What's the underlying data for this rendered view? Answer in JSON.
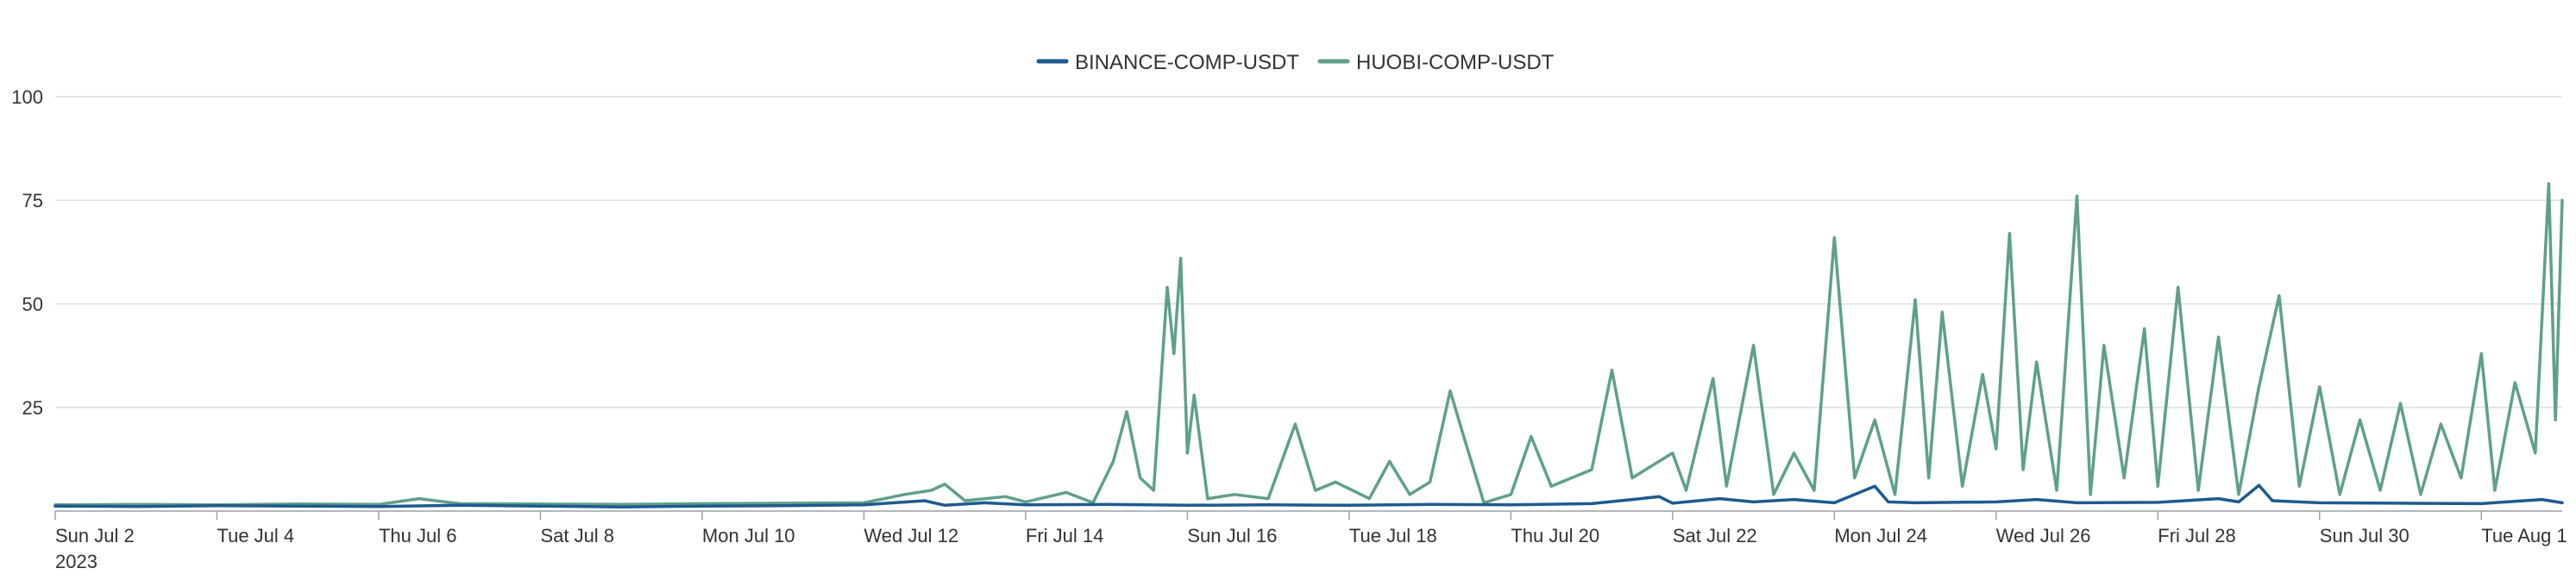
{
  "chart_data": {
    "type": "line",
    "title": "",
    "xlabel": "",
    "ylabel": "",
    "x_range": [
      "2023-07-02",
      "2023-08-02"
    ],
    "ylim": [
      0,
      100
    ],
    "yticks": [
      25,
      50,
      75,
      100
    ],
    "xticks": [
      {
        "date": "2023-07-02",
        "label": "Sun Jul 2",
        "sublabel": "2023"
      },
      {
        "date": "2023-07-04",
        "label": "Tue Jul 4"
      },
      {
        "date": "2023-07-06",
        "label": "Thu Jul 6"
      },
      {
        "date": "2023-07-08",
        "label": "Sat Jul 8"
      },
      {
        "date": "2023-07-10",
        "label": "Mon Jul 10"
      },
      {
        "date": "2023-07-12",
        "label": "Wed Jul 12"
      },
      {
        "date": "2023-07-14",
        "label": "Fri Jul 14"
      },
      {
        "date": "2023-07-16",
        "label": "Sun Jul 16"
      },
      {
        "date": "2023-07-18",
        "label": "Tue Jul 18"
      },
      {
        "date": "2023-07-20",
        "label": "Thu Jul 20"
      },
      {
        "date": "2023-07-22",
        "label": "Sat Jul 22"
      },
      {
        "date": "2023-07-24",
        "label": "Mon Jul 24"
      },
      {
        "date": "2023-07-26",
        "label": "Wed Jul 26"
      },
      {
        "date": "2023-07-28",
        "label": "Fri Jul 28"
      },
      {
        "date": "2023-07-30",
        "label": "Sun Jul 30"
      },
      {
        "date": "2023-08-01",
        "label": "Tue Aug 1"
      }
    ],
    "grid": true,
    "legend_position": "top-center",
    "series": [
      {
        "name": "BINANCE-COMP-USDT",
        "color": "#1f5a8f",
        "points": [
          [
            "2023-07-02T00:00",
            1.2
          ],
          [
            "2023-07-03T00:00",
            1.1
          ],
          [
            "2023-07-04T00:00",
            1.3
          ],
          [
            "2023-07-05T00:00",
            1.2
          ],
          [
            "2023-07-06T00:00",
            1.1
          ],
          [
            "2023-07-07T00:00",
            1.4
          ],
          [
            "2023-07-08T00:00",
            1.2
          ],
          [
            "2023-07-09T00:00",
            1.0
          ],
          [
            "2023-07-10T00:00",
            1.2
          ],
          [
            "2023-07-11T00:00",
            1.3
          ],
          [
            "2023-07-12T00:00",
            1.5
          ],
          [
            "2023-07-12T18:00",
            2.5
          ],
          [
            "2023-07-13T00:00",
            1.4
          ],
          [
            "2023-07-13T12:00",
            2.0
          ],
          [
            "2023-07-14T00:00",
            1.5
          ],
          [
            "2023-07-15T00:00",
            1.6
          ],
          [
            "2023-07-16T00:00",
            1.4
          ],
          [
            "2023-07-17T00:00",
            1.5
          ],
          [
            "2023-07-18T00:00",
            1.4
          ],
          [
            "2023-07-19T00:00",
            1.6
          ],
          [
            "2023-07-20T00:00",
            1.5
          ],
          [
            "2023-07-21T00:00",
            1.8
          ],
          [
            "2023-07-21T12:00",
            2.8
          ],
          [
            "2023-07-21T20:00",
            3.5
          ],
          [
            "2023-07-22T00:00",
            1.9
          ],
          [
            "2023-07-22T14:00",
            3.0
          ],
          [
            "2023-07-23T00:00",
            2.2
          ],
          [
            "2023-07-23T12:00",
            2.8
          ],
          [
            "2023-07-24T00:00",
            2.0
          ],
          [
            "2023-07-24T12:00",
            6.0
          ],
          [
            "2023-07-24T16:00",
            2.2
          ],
          [
            "2023-07-25T00:00",
            2.0
          ],
          [
            "2023-07-26T00:00",
            2.2
          ],
          [
            "2023-07-26T12:00",
            2.8
          ],
          [
            "2023-07-27T00:00",
            2.0
          ],
          [
            "2023-07-28T00:00",
            2.1
          ],
          [
            "2023-07-28T18:00",
            3.0
          ],
          [
            "2023-07-29T00:00",
            2.2
          ],
          [
            "2023-07-29T06:00",
            6.2
          ],
          [
            "2023-07-29T10:00",
            2.5
          ],
          [
            "2023-07-30T00:00",
            2.0
          ],
          [
            "2023-07-31T00:00",
            1.9
          ],
          [
            "2023-08-01T00:00",
            1.8
          ],
          [
            "2023-08-01T18:00",
            2.8
          ],
          [
            "2023-08-02T00:00",
            2.0
          ]
        ]
      },
      {
        "name": "HUOBI-COMP-USDT",
        "color": "#5fa08a",
        "points": [
          [
            "2023-07-02T00:00",
            1.5
          ],
          [
            "2023-07-03T00:00",
            1.6
          ],
          [
            "2023-07-04T00:00",
            1.5
          ],
          [
            "2023-07-05T00:00",
            1.7
          ],
          [
            "2023-07-06T00:00",
            1.6
          ],
          [
            "2023-07-06T12:00",
            3.0
          ],
          [
            "2023-07-07T00:00",
            1.8
          ],
          [
            "2023-07-08T00:00",
            1.7
          ],
          [
            "2023-07-09T00:00",
            1.6
          ],
          [
            "2023-07-10T00:00",
            1.8
          ],
          [
            "2023-07-11T00:00",
            1.9
          ],
          [
            "2023-07-12T00:00",
            2.0
          ],
          [
            "2023-07-12T12:00",
            4.0
          ],
          [
            "2023-07-12T20:00",
            5.0
          ],
          [
            "2023-07-13T00:00",
            6.5
          ],
          [
            "2023-07-13T06:00",
            2.5
          ],
          [
            "2023-07-13T18:00",
            3.5
          ],
          [
            "2023-07-14T00:00",
            2.2
          ],
          [
            "2023-07-14T12:00",
            4.5
          ],
          [
            "2023-07-14T20:00",
            2.0
          ],
          [
            "2023-07-15T02:00",
            12.0
          ],
          [
            "2023-07-15T06:00",
            24.0
          ],
          [
            "2023-07-15T10:00",
            8.0
          ],
          [
            "2023-07-15T14:00",
            5.0
          ],
          [
            "2023-07-15T18:00",
            54.0
          ],
          [
            "2023-07-15T20:00",
            38.0
          ],
          [
            "2023-07-15T22:00",
            61.0
          ],
          [
            "2023-07-16T00:00",
            14.0
          ],
          [
            "2023-07-16T02:00",
            28.0
          ],
          [
            "2023-07-16T06:00",
            3.0
          ],
          [
            "2023-07-16T14:00",
            4.0
          ],
          [
            "2023-07-17T00:00",
            3.0
          ],
          [
            "2023-07-17T08:00",
            21.0
          ],
          [
            "2023-07-17T14:00",
            5.0
          ],
          [
            "2023-07-17T20:00",
            7.0
          ],
          [
            "2023-07-18T06:00",
            3.0
          ],
          [
            "2023-07-18T12:00",
            12.0
          ],
          [
            "2023-07-18T18:00",
            4.0
          ],
          [
            "2023-07-19T00:00",
            7.0
          ],
          [
            "2023-07-19T06:00",
            29.0
          ],
          [
            "2023-07-19T10:00",
            18.0
          ],
          [
            "2023-07-19T16:00",
            2.0
          ],
          [
            "2023-07-20T00:00",
            4.0
          ],
          [
            "2023-07-20T06:00",
            18.0
          ],
          [
            "2023-07-20T12:00",
            6.0
          ],
          [
            "2023-07-21T00:00",
            10.0
          ],
          [
            "2023-07-21T06:00",
            34.0
          ],
          [
            "2023-07-21T12:00",
            8.0
          ],
          [
            "2023-07-22T00:00",
            14.0
          ],
          [
            "2023-07-22T04:00",
            5.0
          ],
          [
            "2023-07-22T12:00",
            32.0
          ],
          [
            "2023-07-22T16:00",
            6.0
          ],
          [
            "2023-07-23T00:00",
            40.0
          ],
          [
            "2023-07-23T06:00",
            4.0
          ],
          [
            "2023-07-23T12:00",
            14.0
          ],
          [
            "2023-07-23T18:00",
            5.0
          ],
          [
            "2023-07-24T00:00",
            66.0
          ],
          [
            "2023-07-24T06:00",
            8.0
          ],
          [
            "2023-07-24T12:00",
            22.0
          ],
          [
            "2023-07-24T18:00",
            4.0
          ],
          [
            "2023-07-25T00:00",
            51.0
          ],
          [
            "2023-07-25T04:00",
            8.0
          ],
          [
            "2023-07-25T08:00",
            48.0
          ],
          [
            "2023-07-25T14:00",
            6.0
          ],
          [
            "2023-07-25T20:00",
            33.0
          ],
          [
            "2023-07-26T00:00",
            15.0
          ],
          [
            "2023-07-26T04:00",
            67.0
          ],
          [
            "2023-07-26T08:00",
            10.0
          ],
          [
            "2023-07-26T12:00",
            36.0
          ],
          [
            "2023-07-26T18:00",
            5.0
          ],
          [
            "2023-07-27T00:00",
            76.0
          ],
          [
            "2023-07-27T04:00",
            4.0
          ],
          [
            "2023-07-27T08:00",
            40.0
          ],
          [
            "2023-07-27T14:00",
            8.0
          ],
          [
            "2023-07-27T20:00",
            44.0
          ],
          [
            "2023-07-28T00:00",
            6.0
          ],
          [
            "2023-07-28T06:00",
            54.0
          ],
          [
            "2023-07-28T12:00",
            5.0
          ],
          [
            "2023-07-28T18:00",
            42.0
          ],
          [
            "2023-07-29T00:00",
            4.0
          ],
          [
            "2023-07-29T06:00",
            30.0
          ],
          [
            "2023-07-29T12:00",
            52.0
          ],
          [
            "2023-07-29T18:00",
            6.0
          ],
          [
            "2023-07-30T00:00",
            30.0
          ],
          [
            "2023-07-30T06:00",
            4.0
          ],
          [
            "2023-07-30T12:00",
            22.0
          ],
          [
            "2023-07-30T18:00",
            5.0
          ],
          [
            "2023-07-31T00:00",
            26.0
          ],
          [
            "2023-07-31T06:00",
            4.0
          ],
          [
            "2023-07-31T12:00",
            21.0
          ],
          [
            "2023-07-31T18:00",
            8.0
          ],
          [
            "2023-08-01T00:00",
            38.0
          ],
          [
            "2023-08-01T04:00",
            5.0
          ],
          [
            "2023-08-01T10:00",
            31.0
          ],
          [
            "2023-08-01T16:00",
            14.0
          ],
          [
            "2023-08-01T20:00",
            79.0
          ],
          [
            "2023-08-01T22:00",
            22.0
          ],
          [
            "2023-08-02T00:00",
            75.0
          ]
        ]
      }
    ]
  }
}
